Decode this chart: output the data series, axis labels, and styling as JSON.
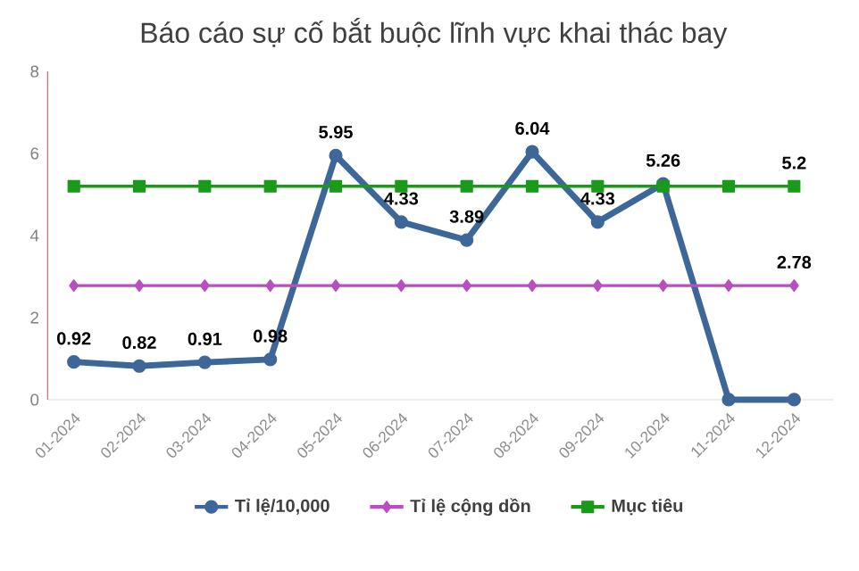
{
  "chart_data": {
    "type": "line",
    "title": "Báo cáo sự cố bắt buộc lĩnh vực khai thác bay",
    "categories": [
      "01-2024",
      "02-2024",
      "03-2024",
      "04-2024",
      "05-2024",
      "06-2024",
      "07-2024",
      "08-2024",
      "09-2024",
      "10-2024",
      "11-2024",
      "12-2024"
    ],
    "series": [
      {
        "name": "Tỉ lệ/10,000",
        "color": "#3d6799",
        "marker": "circle",
        "values": [
          0.92,
          0.82,
          0.91,
          0.98,
          5.95,
          4.33,
          3.89,
          6.04,
          4.33,
          5.26,
          0,
          0
        ],
        "value_labels": [
          "0.92",
          "0.82",
          "0.91",
          "0.98",
          "5.95",
          "4.33",
          "3.89",
          "6.04",
          "4.33",
          "5.26",
          null,
          null
        ]
      },
      {
        "name": "Tỉ lệ cộng dồn",
        "color": "#b84fc0",
        "marker": "diamond",
        "values": [
          2.78,
          2.78,
          2.78,
          2.78,
          2.78,
          2.78,
          2.78,
          2.78,
          2.78,
          2.78,
          2.78,
          2.78
        ],
        "value_labels": [
          null,
          null,
          null,
          null,
          null,
          null,
          null,
          null,
          null,
          null,
          null,
          "2.78"
        ]
      },
      {
        "name": "Mục tiêu",
        "color": "#1a9a1a",
        "marker": "square",
        "values": [
          5.2,
          5.2,
          5.2,
          5.2,
          5.2,
          5.2,
          5.2,
          5.2,
          5.2,
          5.2,
          5.2,
          5.2
        ],
        "value_labels": [
          null,
          null,
          null,
          null,
          null,
          null,
          null,
          null,
          null,
          null,
          null,
          "5.2"
        ]
      }
    ],
    "ylim": [
      0,
      8
    ],
    "yticks": [
      0,
      2,
      4,
      6,
      8
    ],
    "grid": false,
    "legend": "bottom"
  }
}
